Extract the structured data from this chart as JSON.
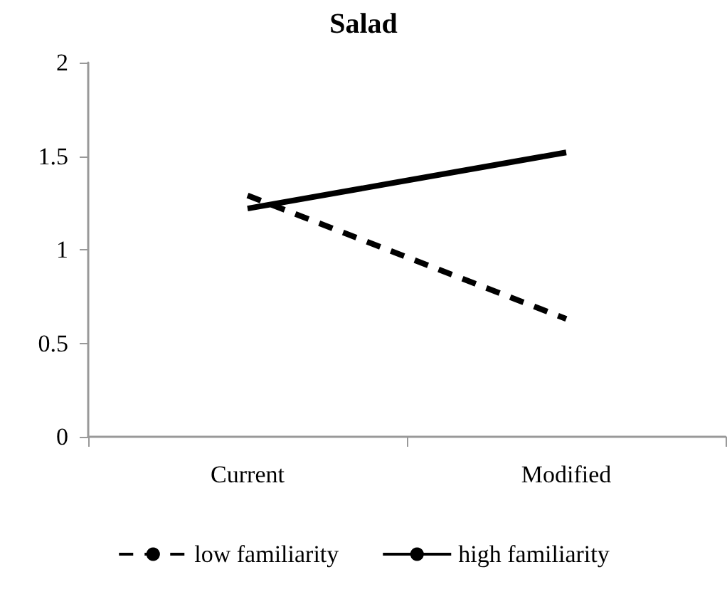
{
  "chart_data": {
    "type": "line",
    "title": "Salad",
    "categories": [
      "Current",
      "Modified"
    ],
    "series": [
      {
        "name": "low familiarity",
        "color": "#000000",
        "values": [
          1.29,
          0.63
        ],
        "line_style": "dashed"
      },
      {
        "name": "high familiarity",
        "color": "#000000",
        "values": [
          1.22,
          1.52
        ],
        "line_style": "solid"
      }
    ],
    "ylim": [
      0,
      2
    ],
    "yticks": [
      0,
      0.5,
      1,
      1.5,
      2
    ],
    "grid": false,
    "legend": "bottom",
    "marker": "none"
  }
}
